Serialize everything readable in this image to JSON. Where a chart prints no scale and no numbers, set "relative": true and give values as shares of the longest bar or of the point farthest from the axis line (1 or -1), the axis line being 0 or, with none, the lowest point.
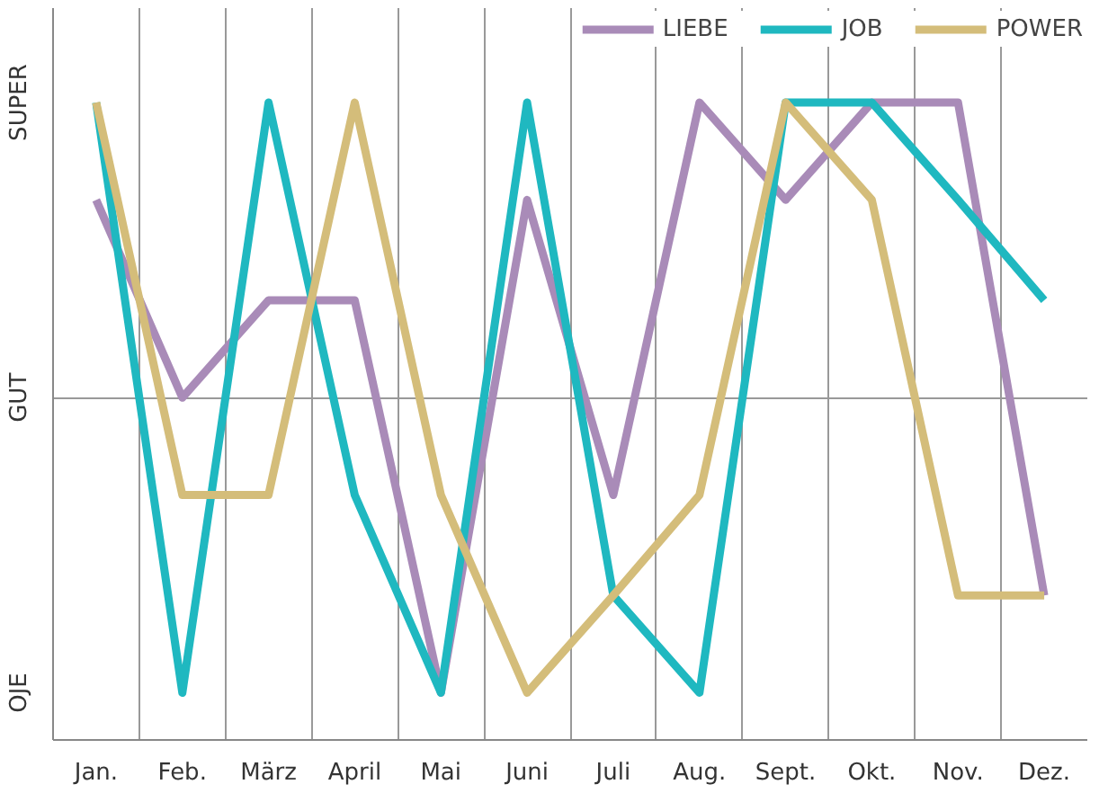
{
  "chart_data": {
    "type": "line",
    "categories": [
      "Jan.",
      "Feb.",
      "März",
      "April",
      "Mai",
      "Juni",
      "Juli",
      "Aug.",
      "Sept.",
      "Okt.",
      "Nov.",
      "Dez."
    ],
    "relative": true,
    "grid": true,
    "legend": "top right",
    "line_style": "solid",
    "annotations": [
      "OJE",
      "GUT",
      "SUPER"
    ],
    "series": [
      {
        "name": "LIEBE",
        "color": "#a98bb8",
        "values": [
          0.67,
          0,
          0.33,
          0.33,
          -1,
          0.67,
          -0.33,
          1,
          0.67,
          1,
          1,
          -0.67
        ]
      },
      {
        "name": "JOB",
        "color": "#1fb8c0",
        "values": [
          1,
          -1,
          1,
          -0.33,
          -1,
          1,
          -0.67,
          -1,
          1,
          1,
          0.67,
          0.33
        ]
      },
      {
        "name": "POWER",
        "color": "#d4bd7a",
        "values": [
          1,
          -0.33,
          -0.33,
          1,
          -0.33,
          -1,
          -0.67,
          -0.33,
          1,
          0.67,
          -0.67,
          -0.67
        ]
      }
    ]
  }
}
